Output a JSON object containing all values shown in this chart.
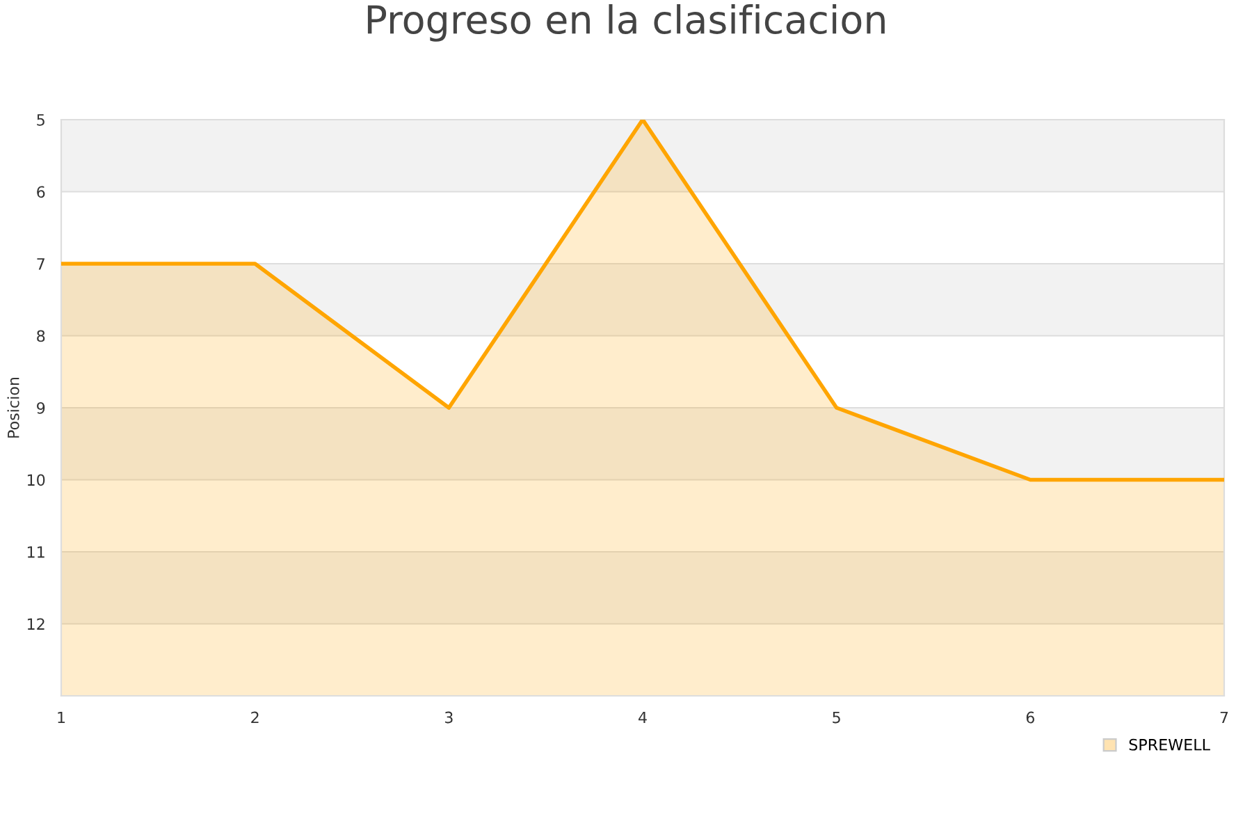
{
  "chart_data": {
    "type": "area",
    "title": "Progreso en la clasificacion",
    "ylabel": "Posicion",
    "x": [
      1,
      2,
      3,
      4,
      5,
      6,
      7
    ],
    "xlim": [
      1,
      7
    ],
    "xticks": [
      1,
      2,
      3,
      4,
      5,
      6,
      7
    ],
    "ylim": [
      13,
      5
    ],
    "yticks": [
      5,
      6,
      7,
      8,
      9,
      10,
      11,
      12
    ],
    "series": [
      {
        "name": "SPREWELL",
        "color": "#ffa500",
        "values": [
          7,
          7,
          9,
          5,
          9,
          10,
          10
        ]
      }
    ],
    "bands": [
      {
        "axis": "y",
        "from": 5,
        "to": 6,
        "color": "#f2f2f2"
      },
      {
        "axis": "y",
        "from": 7,
        "to": 8,
        "color": "#f2f2f2"
      },
      {
        "axis": "y",
        "from": 9,
        "to": 10,
        "color": "#f2f2f2"
      },
      {
        "axis": "y",
        "from": 11,
        "to": 12,
        "color": "#f2f2f2"
      }
    ],
    "grid": "y",
    "legend": "bottom right"
  }
}
